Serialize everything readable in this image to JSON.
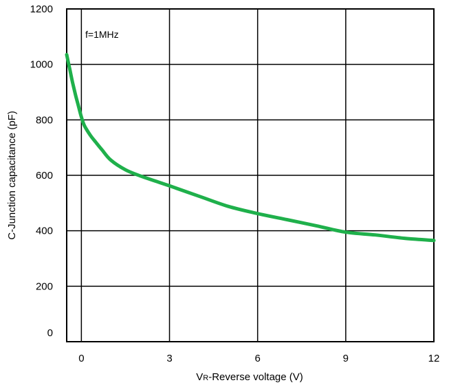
{
  "chart_data": {
    "type": "line",
    "title": "",
    "xlabel_main": "V",
    "xlabel_sub": "R",
    "xlabel_rest": "-Reverse voltage (V)",
    "ylabel": "C-Junction capacitance (pF)",
    "annotation": "f=1MHz",
    "xlim": [
      -0.5,
      12
    ],
    "ylim": [
      0,
      1200
    ],
    "grid": true,
    "x_ticks": [
      "0",
      "3",
      "6",
      "9",
      "12"
    ],
    "y_ticks": [
      "0",
      "200",
      "400",
      "600",
      "800",
      "1000",
      "1200"
    ],
    "series": [
      {
        "color": "#1fb04b",
        "x": [
          -0.5,
          -0.4,
          -0.3,
          -0.2,
          -0.1,
          0,
          0.1,
          0.3,
          0.5,
          0.7,
          1.0,
          1.5,
          2.0,
          2.5,
          3.0,
          4.0,
          5.0,
          6.0,
          7.0,
          8.0,
          9.0,
          10.0,
          11.0,
          12.0
        ],
        "y": [
          1035,
          985,
          935,
          890,
          850,
          810,
          780,
          745,
          718,
          692,
          655,
          620,
          598,
          580,
          562,
          525,
          488,
          462,
          440,
          418,
          395,
          385,
          373,
          365
        ]
      }
    ]
  }
}
